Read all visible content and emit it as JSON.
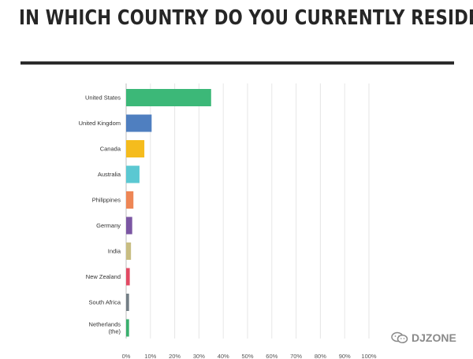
{
  "chart_data": {
    "type": "bar",
    "orientation": "horizontal",
    "title": "IN WHICH COUNTRY DO YOU CURRENTLY RESIDE?",
    "categories": [
      "United States",
      "United Kingdom",
      "Canada",
      "Australia",
      "Philippines",
      "Germany",
      "India",
      "New Zealand",
      "South Africa",
      "Netherlands (the)"
    ],
    "category_lines": [
      [
        "United States"
      ],
      [
        "United Kingdom"
      ],
      [
        "Canada"
      ],
      [
        "Australia"
      ],
      [
        "Philippines"
      ],
      [
        "Germany"
      ],
      [
        "India"
      ],
      [
        "New Zealand"
      ],
      [
        "South Africa"
      ],
      [
        "Netherlands",
        "(the)"
      ]
    ],
    "values": [
      35,
      10.5,
      7.5,
      5.5,
      3,
      2.5,
      2,
      1.5,
      1.2,
      1.2
    ],
    "colors": [
      "#3cb878",
      "#4f7fc0",
      "#f5bc1d",
      "#5bc8d2",
      "#ee8655",
      "#7b56a3",
      "#c8bd82",
      "#e24a63",
      "#737f86",
      "#3ab06e"
    ],
    "xlim": [
      0,
      100
    ],
    "xticks": [
      "0%",
      "10%",
      "20%",
      "30%",
      "40%",
      "50%",
      "60%",
      "70%",
      "80%",
      "90%",
      "100%"
    ],
    "grid": true,
    "xlabel": "",
    "ylabel": ""
  },
  "watermark": {
    "text": "DJZONE",
    "icon": "wechat-icon"
  }
}
